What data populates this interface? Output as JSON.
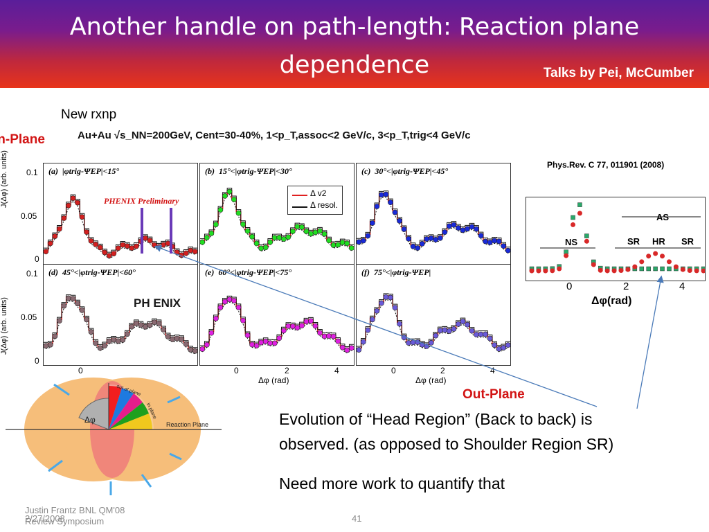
{
  "slide": {
    "title": "Another handle on path-length: Reaction plane dependence",
    "talks": "Talks by Pei, McCumber",
    "new_rxnp": "New rxnp",
    "in_plane": "In-Plane",
    "out_plane": "Out-Plane",
    "citation": "Phys.Rev. C 77, 011901 (2008)",
    "body_line1": "Evolution of “Head Region” (Back to back) is",
    "body_line2": "observed.  (as opposed to Shoulder Region SR)",
    "body_line3": "Need more work to quantify that",
    "footer_left": "Justin Frantz BNL QM'08 Review Symposium",
    "footer_date": "2/27/2008",
    "page_number": "41"
  },
  "figure": {
    "header": "Au+Au √s_NN=200GeV, Cent=30-40%,    1<p_T,assoc<2 GeV/c,  3<p_T,trig<4 GeV/c",
    "ylabel": "J(Δφ) (arb. units)",
    "xlabel": "Δφ (rad)",
    "yticks": [
      "0.1",
      "0.05",
      "0"
    ],
    "xticks": [
      "0",
      "2",
      "4"
    ],
    "preliminary": "PHENIX Preliminary",
    "logo": "PH ENIX",
    "legend": [
      "Δ v2",
      "Δ resol."
    ],
    "panels": [
      {
        "label": "(a)",
        "cut": "|φtrig-ΨEP|<15°",
        "color": "#d22020"
      },
      {
        "label": "(b)",
        "cut": "15°<|φtrig-ΨEP|<30°",
        "color": "#22dd22"
      },
      {
        "label": "(c)",
        "cut": "30°<|φtrig-ΨEP|<45°",
        "color": "#1a2ad8"
      },
      {
        "label": "(d)",
        "cut": "45°<|φtrig-ΨEP|<60°",
        "color": "#8a6a72"
      },
      {
        "label": "(e)",
        "cut": "60°<|φtrig-ΨEP|<75°",
        "color": "#e020e0"
      },
      {
        "label": "(f)",
        "cut": "75°<|φtrig-ΨEP|",
        "color": "#6a5ad8"
      }
    ]
  },
  "inset": {
    "regions": [
      "AS",
      "NS",
      "SR",
      "HR",
      "SR"
    ],
    "xticks": [
      "0",
      "2",
      "4"
    ],
    "xlabel": "Δφ(rad)"
  },
  "diagram": {
    "dphi": "Δφ",
    "out_of_plane": "out of plane",
    "in_plane": "in plane",
    "reaction_plane": "Reaction Plane"
  }
}
